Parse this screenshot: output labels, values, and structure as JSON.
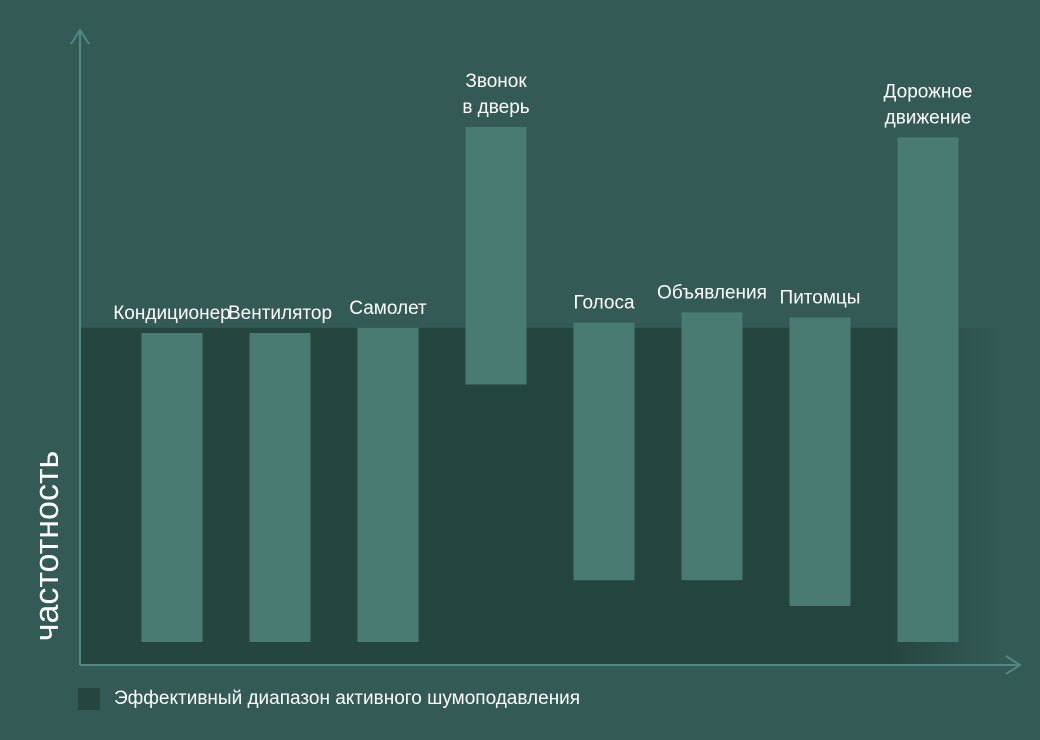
{
  "chart_data": {
    "type": "bar",
    "subtype": "floating-range",
    "ylabel": "частотность",
    "xlabel": "",
    "y_axis_ticks": "none",
    "x_axis_ticks": "none",
    "categories": [
      [
        "Кондиционер"
      ],
      [
        "Вентилятор"
      ],
      [
        "Самолет"
      ],
      [
        "Звонок",
        "в дверь"
      ],
      [
        "Голоса"
      ],
      [
        "Объявления"
      ],
      [
        "Питомцы"
      ],
      [
        "Дорожное",
        "движение"
      ]
    ],
    "ranges": [
      [
        0.0,
        0.6
      ],
      [
        0.0,
        0.6
      ],
      [
        0.0,
        0.61
      ],
      [
        0.5,
        1.0
      ],
      [
        0.12,
        0.62
      ],
      [
        0.12,
        0.64
      ],
      [
        0.07,
        0.63
      ],
      [
        0.0,
        0.98
      ]
    ],
    "anc_band": [
      0.0,
      0.61
    ],
    "legend": {
      "label": "Эффективный диапазон активного шумоподавления",
      "placement": "bottom-left"
    },
    "colors": {
      "background": "#345a55",
      "anc_band": "#24463f",
      "bar": "#4a7b73",
      "axis": "#4f8a80",
      "text": "#ffffff"
    }
  }
}
